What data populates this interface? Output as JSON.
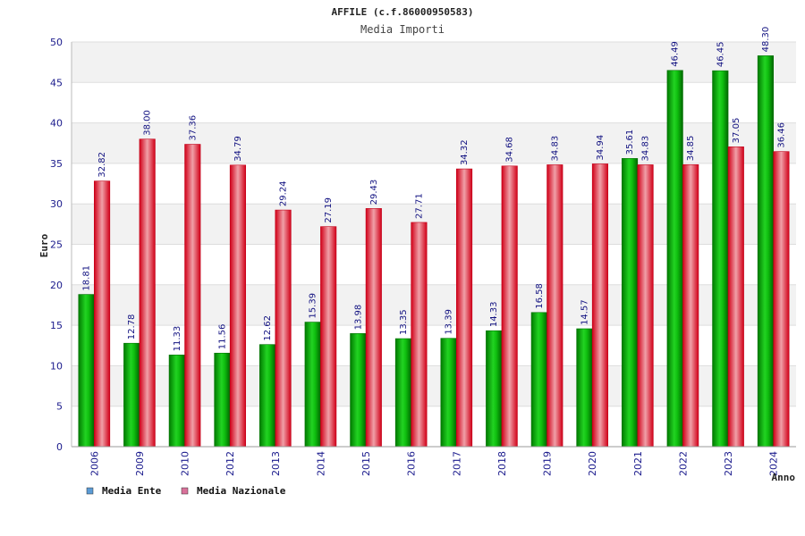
{
  "chart_data": {
    "type": "bar",
    "title": "AFFILE (c.f.86000950583)",
    "subtitle": "Media Importi",
    "ylabel": "Euro",
    "xlabel": "Anno",
    "ylim": [
      0,
      50
    ],
    "yticks": [
      0,
      5,
      10,
      15,
      20,
      25,
      30,
      35,
      40,
      45,
      50
    ],
    "grid": true,
    "legend_position": "bottom-left",
    "categories": [
      "2006",
      "2009",
      "2010",
      "2012",
      "2013",
      "2014",
      "2015",
      "2016",
      "2017",
      "2018",
      "2019",
      "2020",
      "2021",
      "2022",
      "2023",
      "2024"
    ],
    "series": [
      {
        "name": "Media Ente",
        "color": "#00a800",
        "legend_color": "#5b9bd5",
        "values": [
          18.81,
          12.78,
          11.33,
          11.56,
          12.62,
          15.39,
          13.98,
          13.35,
          13.39,
          14.33,
          16.58,
          14.57,
          35.61,
          46.49,
          46.45,
          48.3
        ],
        "labels": [
          "18.81",
          "12.78",
          "11.33",
          "11.56",
          "12.62",
          "15.39",
          "13.98",
          "13.35",
          "13.39",
          "14.33",
          "16.58",
          "14.57",
          "35.61",
          "46.49",
          "46.45",
          "48.30"
        ]
      },
      {
        "name": "Media Nazionale",
        "color": "#e8192c",
        "legend_color": "#d9719a",
        "values": [
          32.82,
          38.0,
          37.36,
          34.79,
          29.24,
          27.19,
          29.43,
          27.71,
          34.32,
          34.68,
          34.83,
          34.94,
          34.83,
          34.85,
          37.05,
          36.46
        ],
        "labels": [
          "32.82",
          "38.00",
          "37.36",
          "34.79",
          "29.24",
          "27.19",
          "29.43",
          "27.71",
          "34.32",
          "34.68",
          "34.83",
          "34.94",
          "34.83",
          "34.85",
          "37.05",
          "36.46"
        ]
      }
    ]
  }
}
